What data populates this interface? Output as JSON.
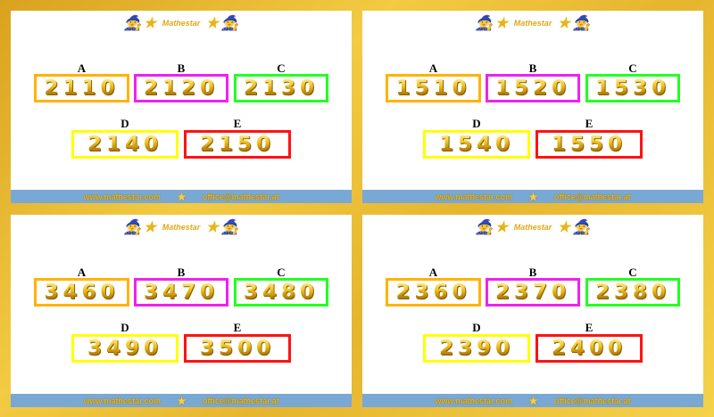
{
  "brand": "Mathestar",
  "footer": {
    "website": "www.mathestar.com",
    "email": "office@mathestar.at"
  },
  "icons": [
    "wizard-icon",
    "star-icon"
  ],
  "border_colors": {
    "A": "#ffb300",
    "B": "#ee22ee",
    "C": "#22ff22",
    "D": "#ffff00",
    "E": "#ff1111"
  },
  "cards": [
    {
      "options": [
        {
          "label": "A",
          "value": "2110"
        },
        {
          "label": "B",
          "value": "2120"
        },
        {
          "label": "C",
          "value": "2130"
        },
        {
          "label": "D",
          "value": "2140"
        },
        {
          "label": "E",
          "value": "2150"
        }
      ]
    },
    {
      "options": [
        {
          "label": "A",
          "value": "1510"
        },
        {
          "label": "B",
          "value": "1520"
        },
        {
          "label": "C",
          "value": "1530"
        },
        {
          "label": "D",
          "value": "1540"
        },
        {
          "label": "E",
          "value": "1550"
        }
      ]
    },
    {
      "options": [
        {
          "label": "A",
          "value": "3460"
        },
        {
          "label": "B",
          "value": "3470"
        },
        {
          "label": "C",
          "value": "3480"
        },
        {
          "label": "D",
          "value": "3490"
        },
        {
          "label": "E",
          "value": "3500"
        }
      ]
    },
    {
      "options": [
        {
          "label": "A",
          "value": "2360"
        },
        {
          "label": "B",
          "value": "2370"
        },
        {
          "label": "C",
          "value": "2380"
        },
        {
          "label": "D",
          "value": "2390"
        },
        {
          "label": "E",
          "value": "2400"
        }
      ]
    }
  ]
}
